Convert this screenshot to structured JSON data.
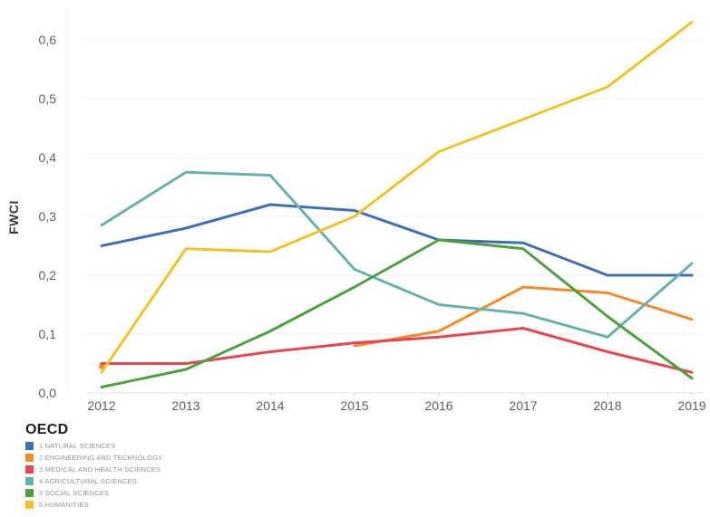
{
  "chart_data": {
    "type": "line",
    "title": "",
    "ylabel": "FWCI",
    "xlabel": "",
    "x_labels": [
      "2012",
      "2013",
      "2014",
      "2015",
      "2016",
      "2017",
      "2018",
      "2019"
    ],
    "y_ticks": [
      "0,0",
      "0,1",
      "0,2",
      "0,3",
      "0,4",
      "0,5",
      "0,6"
    ],
    "ylim": [
      0,
      0.65
    ],
    "grid": "horizontal",
    "legend_title": "OECD",
    "legend_position": "bottom-left",
    "series": [
      {
        "name": "1 NATURAL SCIENCES",
        "color": "#3E6FB2",
        "values": [
          0.25,
          0.28,
          0.32,
          0.31,
          0.26,
          0.255,
          0.2,
          0.2
        ]
      },
      {
        "name": "2 ENGINEERING AND TECHNOLOGY",
        "color": "#F28C2B",
        "values": [
          0.045,
          null,
          null,
          0.08,
          0.105,
          0.18,
          0.17,
          0.125
        ]
      },
      {
        "name": "3 MEDICAL AND HEALTH SCIENCES",
        "color": "#E64750",
        "values": [
          0.05,
          0.05,
          0.07,
          0.085,
          0.095,
          0.11,
          0.07,
          0.035
        ]
      },
      {
        "name": "4 AGRICULTURAL SCIENCES",
        "color": "#68B2AC",
        "values": [
          0.285,
          0.375,
          0.37,
          0.21,
          0.15,
          0.135,
          0.095,
          0.22
        ]
      },
      {
        "name": "5 SOCIAL SCIENCES",
        "color": "#4CA03E",
        "values": [
          0.01,
          0.04,
          0.105,
          0.18,
          0.26,
          0.245,
          0.13,
          0.025
        ]
      },
      {
        "name": "6 HUMANITIES",
        "color": "#EFC42A",
        "values": [
          0.035,
          0.245,
          0.24,
          0.3,
          0.41,
          0.465,
          0.52,
          0.63
        ]
      }
    ],
    "colors": {
      "gridline": "#ededed",
      "axis_line": "#e2e2e2",
      "tick_text": "#5f5f5f",
      "ylabel_text": "#3a3a3a"
    }
  }
}
